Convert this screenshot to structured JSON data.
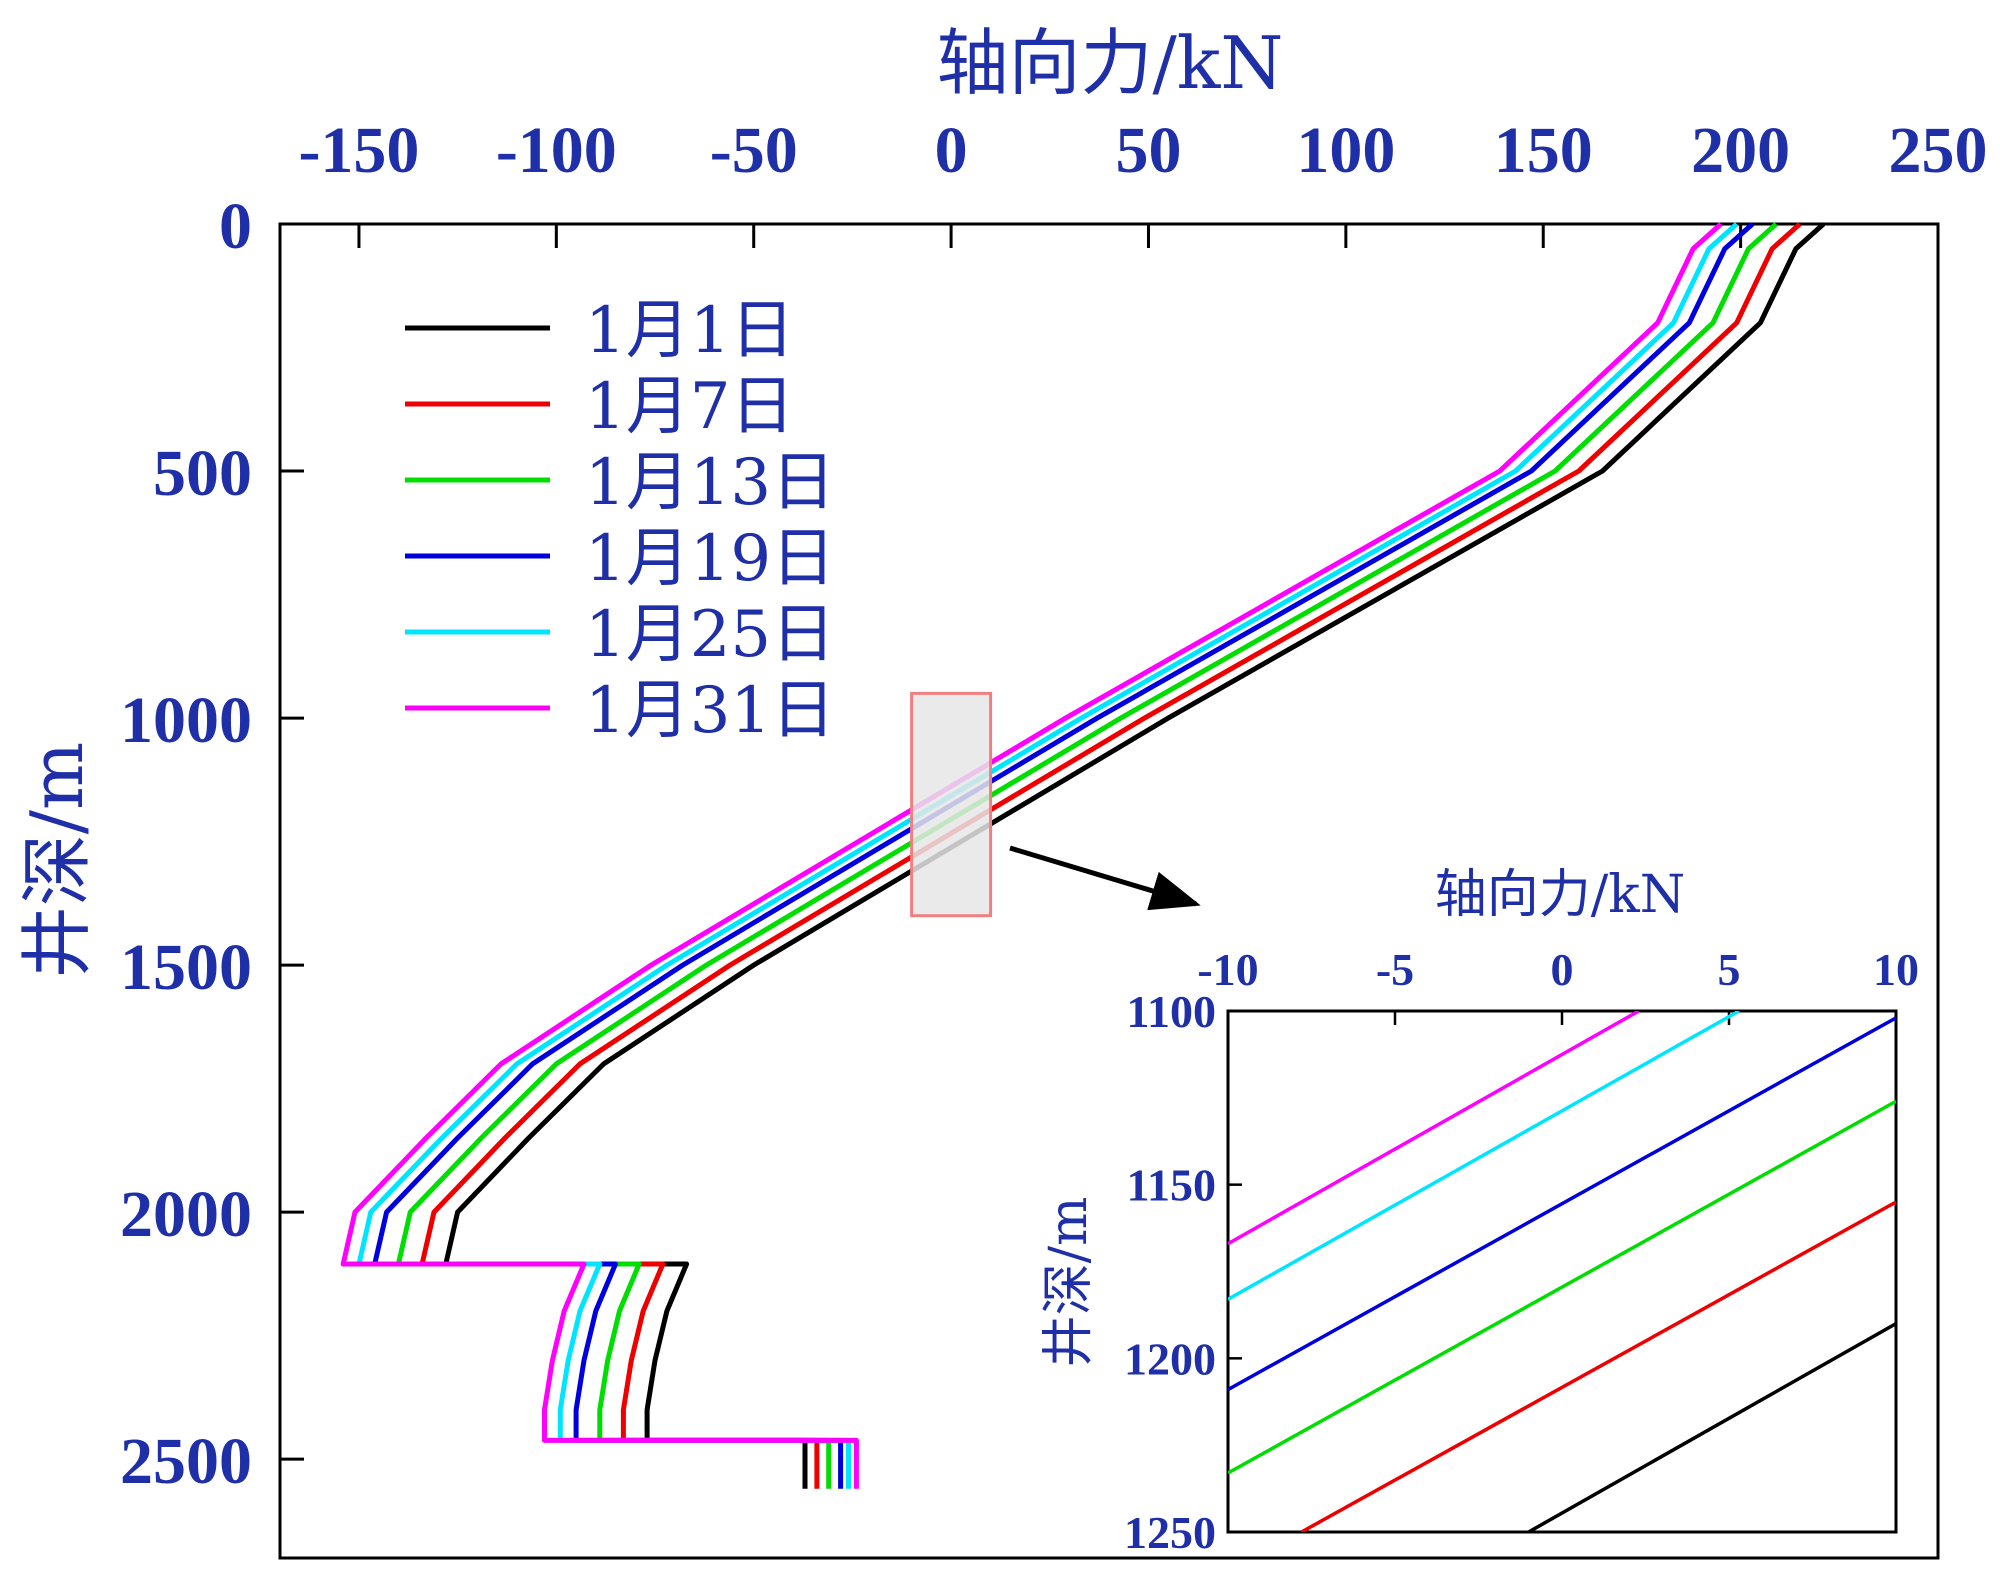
{
  "chart_data": [
    {
      "type": "line",
      "xlabel": "轴向力/kN",
      "ylabel": "井深/m",
      "xlim": [
        -170,
        250
      ],
      "ylim": [
        0,
        2700
      ],
      "y_inverted": true,
      "x_axis_position": "top",
      "xticks": [
        -150,
        -100,
        -50,
        0,
        50,
        100,
        150,
        200,
        250
      ],
      "xtick_labels": [
        "-150",
        "-100",
        "-50",
        "0",
        "50",
        "100",
        "150",
        "200",
        "250"
      ],
      "yticks": [
        0,
        500,
        1000,
        1500,
        2000,
        2500
      ],
      "ytick_labels": [
        "0",
        "500",
        "1000",
        "1500",
        "2000",
        "2500"
      ],
      "legend_position": "top-left",
      "highlight_box": {
        "x": [
          -10,
          10
        ],
        "y": [
          950,
          1400
        ],
        "fill": "#e6e6e6",
        "stroke": "#f08080"
      },
      "series": [
        {
          "name": "1月1日",
          "color": "#000000",
          "points": [
            [
              221,
              0
            ],
            [
              214,
              50
            ],
            [
              205,
              200
            ],
            [
              165,
              500
            ],
            [
              55,
              1000
            ],
            [
              -50,
              1500
            ],
            [
              -88,
              1700
            ],
            [
              -107,
              1850
            ],
            [
              -125,
              2000
            ],
            [
              -128,
              2105
            ],
            [
              -67,
              2105
            ],
            [
              -72,
              2200
            ],
            [
              -75,
              2300
            ],
            [
              -77,
              2400
            ],
            [
              -77,
              2462
            ],
            [
              -37,
              2462
            ],
            [
              -37,
              2550
            ],
            [
              -37,
              2560
            ]
          ]
        },
        {
          "name": "1月7日",
          "color": "#ee0000",
          "points": [
            [
              215,
              0
            ],
            [
              208,
              50
            ],
            [
              199,
              200
            ],
            [
              159,
              500
            ],
            [
              49,
              1000
            ],
            [
              -56,
              1500
            ],
            [
              -94,
              1700
            ],
            [
              -113,
              1850
            ],
            [
              -131,
              2000
            ],
            [
              -134,
              2105
            ],
            [
              -73,
              2105
            ],
            [
              -78,
              2200
            ],
            [
              -81,
              2300
            ],
            [
              -83,
              2400
            ],
            [
              -83,
              2462
            ],
            [
              -34,
              2462
            ],
            [
              -34,
              2550
            ],
            [
              -34,
              2560
            ]
          ]
        },
        {
          "name": "1月13日",
          "color": "#00dd00",
          "points": [
            [
              209,
              0
            ],
            [
              202,
              50
            ],
            [
              193,
              200
            ],
            [
              153,
              500
            ],
            [
              43,
              1000
            ],
            [
              -62,
              1500
            ],
            [
              -100,
              1700
            ],
            [
              -119,
              1850
            ],
            [
              -137,
              2000
            ],
            [
              -140,
              2105
            ],
            [
              -79,
              2105
            ],
            [
              -84,
              2200
            ],
            [
              -87,
              2300
            ],
            [
              -89,
              2400
            ],
            [
              -89,
              2462
            ],
            [
              -31,
              2462
            ],
            [
              -31,
              2550
            ],
            [
              -31,
              2560
            ]
          ]
        },
        {
          "name": "1月19日",
          "color": "#0000dd",
          "points": [
            [
              203,
              0
            ],
            [
              196,
              50
            ],
            [
              187,
              200
            ],
            [
              147,
              500
            ],
            [
              37,
              1000
            ],
            [
              -68,
              1500
            ],
            [
              -106,
              1700
            ],
            [
              -125,
              1850
            ],
            [
              -143,
              2000
            ],
            [
              -146,
              2105
            ],
            [
              -85,
              2105
            ],
            [
              -90,
              2200
            ],
            [
              -93,
              2300
            ],
            [
              -95,
              2400
            ],
            [
              -95,
              2462
            ],
            [
              -28,
              2462
            ],
            [
              -28,
              2550
            ],
            [
              -28,
              2560
            ]
          ]
        },
        {
          "name": "1月25日",
          "color": "#00e5ff",
          "points": [
            [
              199,
              0
            ],
            [
              192,
              50
            ],
            [
              183,
              200
            ],
            [
              143,
              500
            ],
            [
              33,
              1000
            ],
            [
              -72,
              1500
            ],
            [
              -110,
              1700
            ],
            [
              -129,
              1850
            ],
            [
              -147,
              2000
            ],
            [
              -150,
              2105
            ],
            [
              -89,
              2105
            ],
            [
              -94,
              2200
            ],
            [
              -97,
              2300
            ],
            [
              -99,
              2400
            ],
            [
              -99,
              2462
            ],
            [
              -26,
              2462
            ],
            [
              -26,
              2550
            ],
            [
              -26,
              2560
            ]
          ]
        },
        {
          "name": "1月31日",
          "color": "#ff00ff",
          "points": [
            [
              195,
              0
            ],
            [
              188,
              50
            ],
            [
              179,
              200
            ],
            [
              139,
              500
            ],
            [
              29,
              1000
            ],
            [
              -76,
              1500
            ],
            [
              -114,
              1700
            ],
            [
              -133,
              1850
            ],
            [
              -151,
              2000
            ],
            [
              -154,
              2105
            ],
            [
              -93,
              2105
            ],
            [
              -98,
              2200
            ],
            [
              -101,
              2300
            ],
            [
              -103,
              2400
            ],
            [
              -103,
              2462
            ],
            [
              -24,
              2462
            ],
            [
              -24,
              2550
            ],
            [
              -24,
              2560
            ]
          ]
        }
      ]
    },
    {
      "type": "line",
      "xlabel": "轴向力/kN",
      "ylabel": "井深/m",
      "xlim": [
        -10,
        10
      ],
      "ylim": [
        1100,
        1250
      ],
      "y_inverted": true,
      "x_axis_position": "top",
      "xticks": [
        -10,
        -5,
        0,
        5,
        10
      ],
      "xtick_labels": [
        "-10",
        "-5",
        "0",
        "5",
        "10"
      ],
      "yticks": [
        1100,
        1150,
        1200,
        1250
      ],
      "ytick_labels": [
        "1100",
        "1150",
        "1200",
        "1250"
      ],
      "series": [
        {
          "name": "1月1日",
          "color": "#000000",
          "points": [
            [
              -1,
              1250
            ],
            [
              10,
              1190
            ]
          ]
        },
        {
          "name": "1月7日",
          "color": "#ee0000",
          "points": [
            [
              -7.8,
              1250
            ],
            [
              10,
              1155
            ]
          ]
        },
        {
          "name": "1月13日",
          "color": "#00dd00",
          "points": [
            [
              -10,
              1233
            ],
            [
              10,
              1126
            ]
          ]
        },
        {
          "name": "1月19日",
          "color": "#0000dd",
          "points": [
            [
              -10,
              1209
            ],
            [
              10,
              1102
            ]
          ]
        },
        {
          "name": "1月25日",
          "color": "#00e5ff",
          "points": [
            [
              -10,
              1183
            ],
            [
              5.3,
              1100
            ]
          ]
        },
        {
          "name": "1月31日",
          "color": "#ff00ff",
          "points": [
            [
              -10,
              1167
            ],
            [
              2.3,
              1100
            ]
          ]
        }
      ]
    }
  ]
}
